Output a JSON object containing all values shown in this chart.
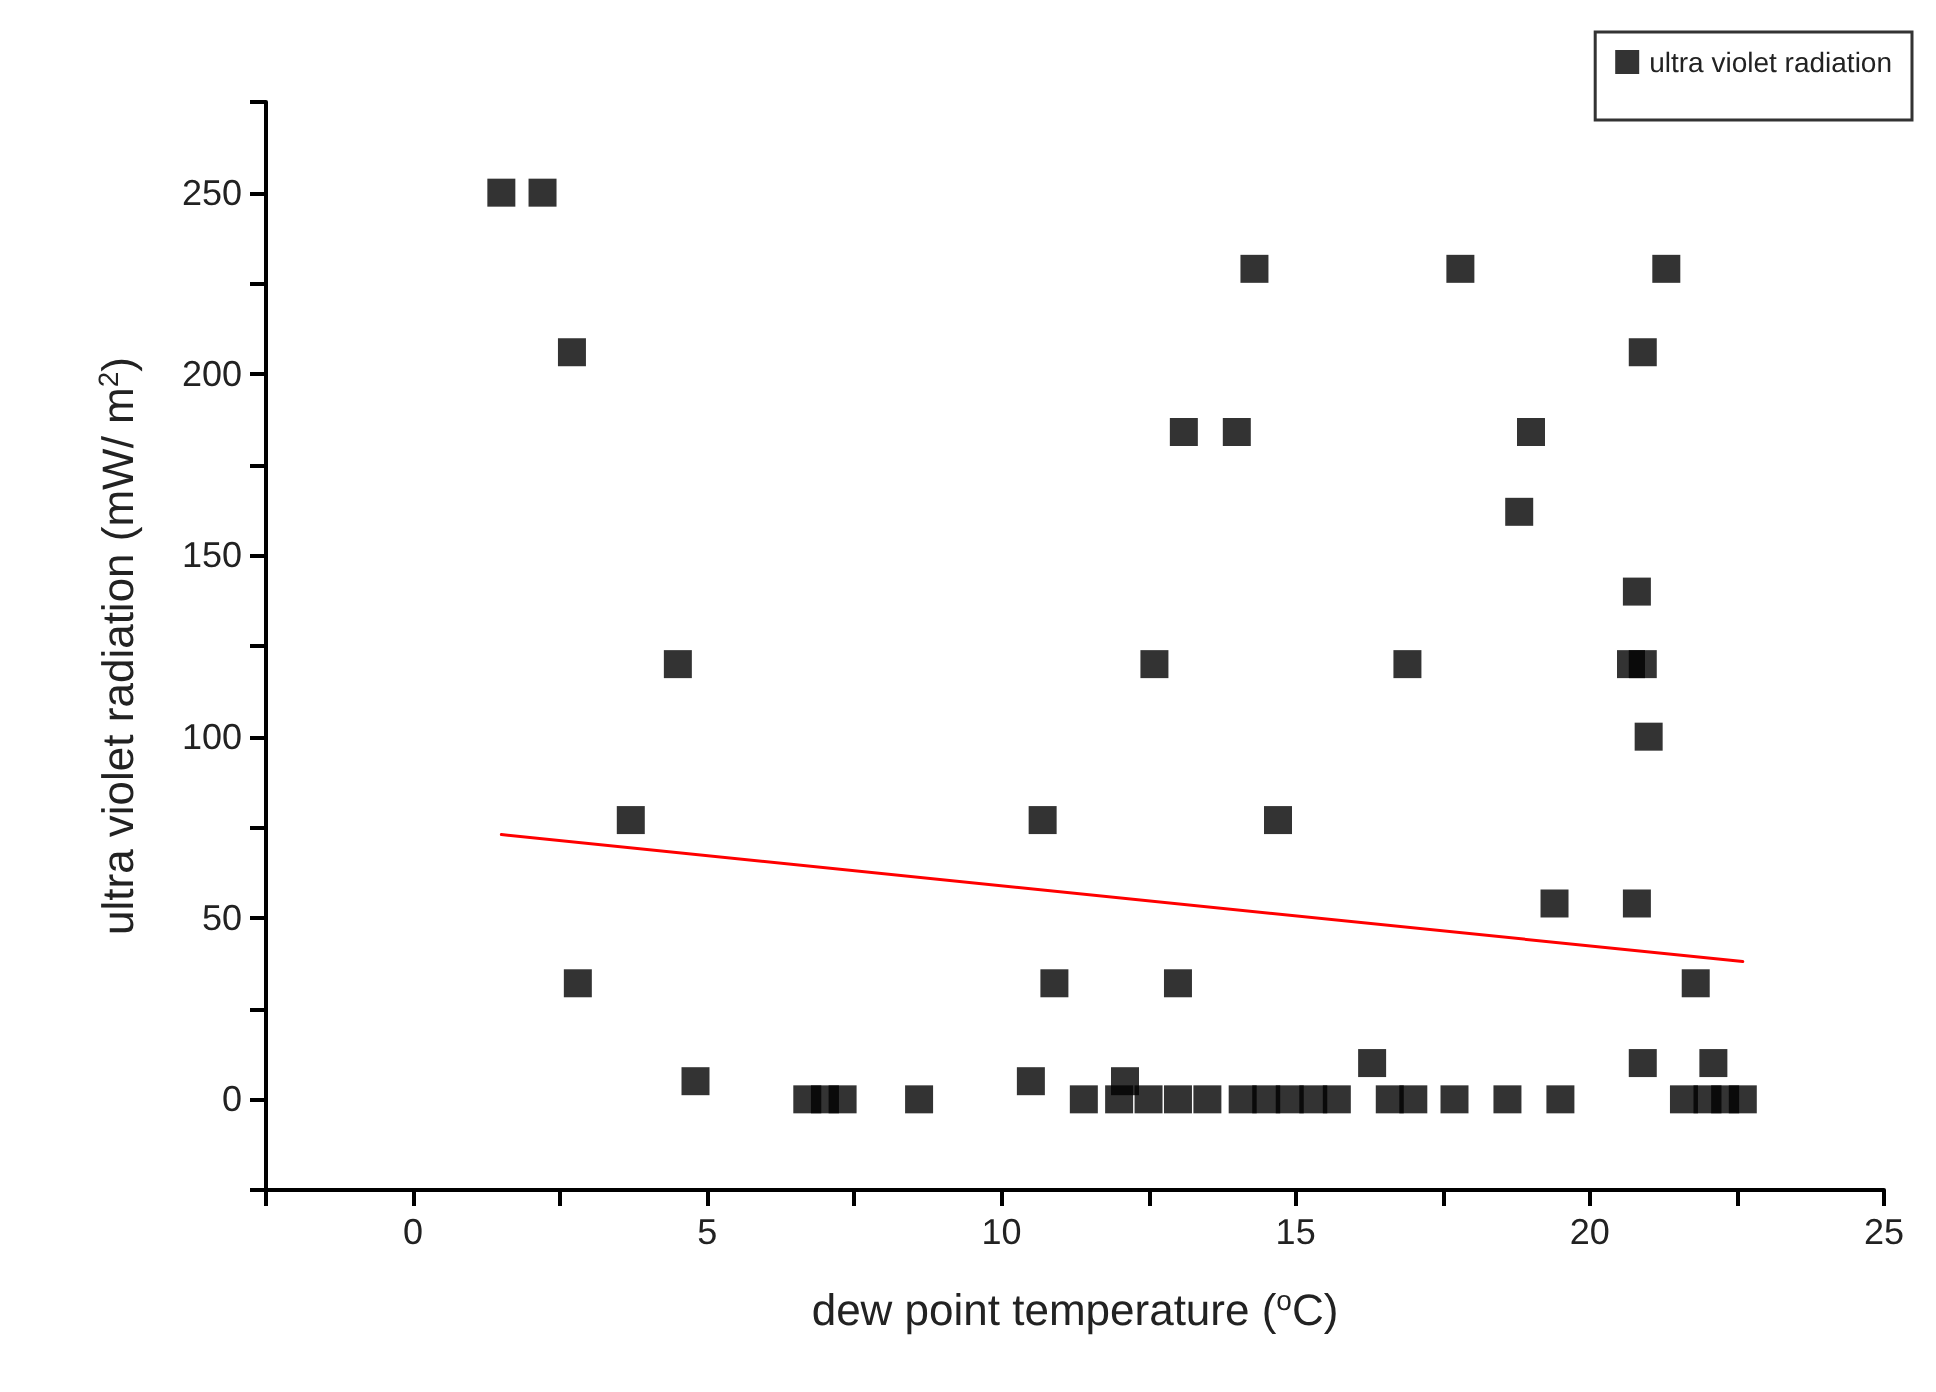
{
  "chart_data": {
    "type": "scatter",
    "xlabel": "dew point temperature ($^{o}$C)",
    "ylabel": "ultra violet radiation (mW/ m$^{2}$)",
    "xlim": [
      -2.5,
      25
    ],
    "ylim": [
      -25,
      275
    ],
    "xticks": [
      {
        "value": -2.5,
        "label": null
      },
      0,
      {
        "value": 2.5,
        "label": null
      },
      5,
      {
        "value": 7.5,
        "label": null
      },
      10,
      {
        "value": 12.5,
        "label": null
      },
      15,
      {
        "value": 17.5,
        "label": null
      },
      20,
      {
        "value": 22.5,
        "label": null
      },
      25
    ],
    "yticks": [
      {
        "value": -25,
        "label": null
      },
      0,
      {
        "value": 25,
        "label": null
      },
      50,
      {
        "value": 75,
        "label": null
      },
      100,
      {
        "value": 125,
        "label": null
      },
      150,
      {
        "value": 175,
        "label": null
      },
      200,
      {
        "value": 225,
        "label": null
      },
      250,
      {
        "value": 275,
        "label": null
      }
    ],
    "grid": false,
    "legend": "top right",
    "marker": "square",
    "series": [
      {
        "name": "ultra violet radiation",
        "color": "#000000",
        "x": [
          1.5,
          2.2,
          2.7,
          4.5,
          3.7,
          2.8,
          4.8,
          6.7,
          7.0,
          7.3,
          8.6,
          10.5,
          10.7,
          10.9,
          14.3,
          17.8,
          21.3,
          20.9,
          13.1,
          14.0,
          19.0,
          18.8,
          20.8,
          12.6,
          16.9,
          20.7,
          20.9,
          21.0,
          14.7,
          13.0,
          19.4,
          20.8,
          21.8,
          16.3,
          20.9,
          22.1,
          12.1,
          11.4,
          12.0,
          12.5,
          13.0,
          13.5,
          14.1,
          14.5,
          14.9,
          15.3,
          15.7,
          16.6,
          17.0,
          17.7,
          18.6,
          19.5,
          21.6,
          22.0,
          22.3,
          22.6
        ],
        "values": [
          250,
          250,
          206,
          120,
          77,
          32,
          5,
          0,
          0,
          0,
          0,
          5,
          77,
          32,
          229,
          229,
          229,
          206,
          184,
          184,
          184,
          162,
          140,
          120,
          120,
          120,
          120,
          100,
          77,
          32,
          54,
          54,
          32,
          10,
          10,
          10,
          5,
          0,
          0,
          0,
          0,
          0,
          0,
          0,
          0,
          0,
          0,
          0,
          0,
          0,
          0,
          0,
          0,
          0,
          0,
          0
        ]
      },
      {
        "type": "line",
        "color": "#ff0000",
        "marker": "none",
        "line_style": "solid",
        "x": [
          1.5,
          22.6
        ],
        "values": [
          73,
          38
        ]
      }
    ]
  }
}
